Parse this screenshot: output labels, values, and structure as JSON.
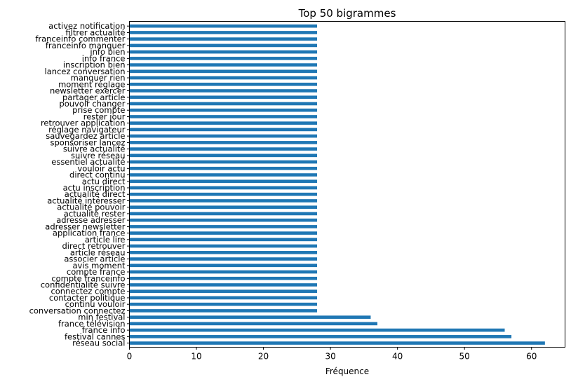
{
  "chart_data": {
    "type": "bar",
    "orientation": "horizontal",
    "title": "Top 50 bigrammes",
    "xlabel": "Fréquence",
    "ylabel": "",
    "xlim": [
      0,
      65
    ],
    "xticks": [
      0,
      10,
      20,
      30,
      40,
      50,
      60
    ],
    "grid": false,
    "color": "#1f77b4",
    "categories": [
      "activez notification",
      "filtrer actualité",
      "franceinfo commenter",
      "franceinfo manquer",
      "info bien",
      "info france",
      "inscription bien",
      "lancez conversation",
      "manquer rien",
      "moment réglage",
      "newsletter exercer",
      "partager article",
      "pouvoir changer",
      "prise compte",
      "rester jour",
      "retrouver application",
      "réglage navigateur",
      "sauvegardez article",
      "sponsoriser lancez",
      "suivre actualité",
      "suivre réseau",
      "essentiel actualité",
      "vouloir actu",
      "direct continu",
      "actu direct",
      "actu inscription",
      "actualité direct",
      "actualité intéresser",
      "actualité pouvoir",
      "actualité rester",
      "adresse adresser",
      "adresser newsletter",
      "application france",
      "article lire",
      "direct retrouver",
      "article réseau",
      "associer article",
      "avis moment",
      "compte france",
      "compte franceinfo",
      "confidentialité suivre",
      "connectez compte",
      "contacter politique",
      "continu vouloir",
      "conversation connectez",
      "min festival",
      "france télévision",
      "france info",
      "festival cannes",
      "réseau social"
    ],
    "values": [
      28,
      28,
      28,
      28,
      28,
      28,
      28,
      28,
      28,
      28,
      28,
      28,
      28,
      28,
      28,
      28,
      28,
      28,
      28,
      28,
      28,
      28,
      28,
      28,
      28,
      28,
      28,
      28,
      28,
      28,
      28,
      28,
      28,
      28,
      28,
      28,
      28,
      28,
      28,
      28,
      28,
      28,
      28,
      28,
      28,
      36,
      37,
      56,
      57,
      62
    ]
  }
}
